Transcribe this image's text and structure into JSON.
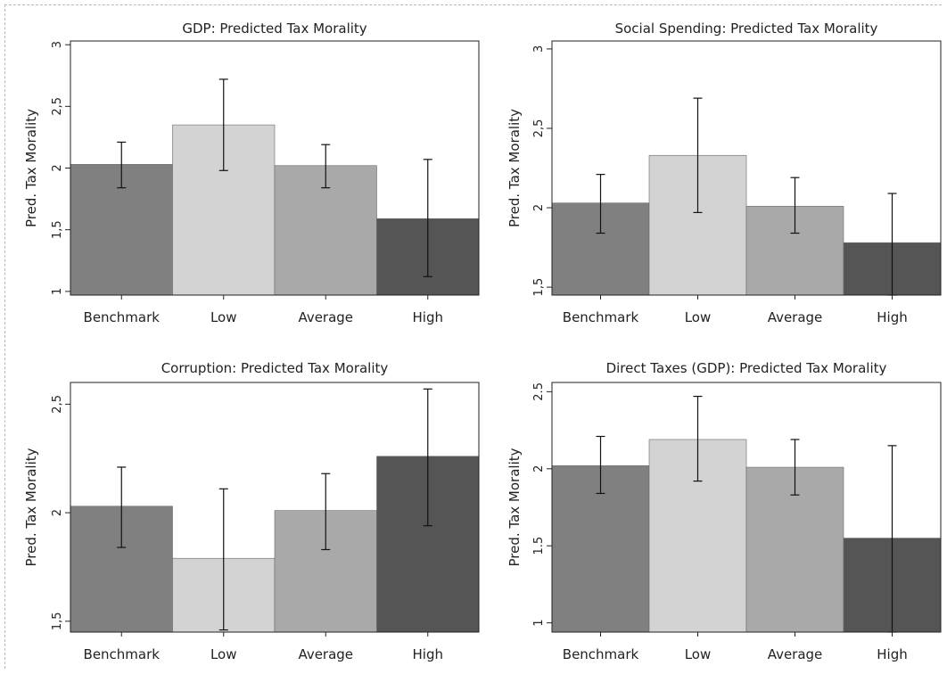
{
  "chart_data": [
    {
      "type": "bar",
      "title": "GDP: Predicted Tax Morality",
      "xlabel": "",
      "ylabel": "Pred. Tax Morality",
      "categories": [
        "Benchmark",
        "Low",
        "Average",
        "High"
      ],
      "values": [
        2.03,
        2.35,
        2.02,
        1.59
      ],
      "error_low": [
        1.84,
        1.98,
        1.84,
        1.12
      ],
      "error_high": [
        2.21,
        2.72,
        2.19,
        2.07
      ],
      "ylim": [
        0.97,
        3.03
      ],
      "yticks": [
        1,
        1.5,
        2,
        2.5,
        3
      ],
      "ytick_labels": [
        "1",
        "1,5",
        "2",
        "2,5",
        "3"
      ],
      "colors": [
        "#808080",
        "#d3d3d3",
        "#a9a9a9",
        "#555555"
      ],
      "grid": false,
      "legend": "none"
    },
    {
      "type": "bar",
      "title": "Social Spending: Predicted Tax Morality",
      "xlabel": "",
      "ylabel": "Pred. Tax Morality",
      "categories": [
        "Benchmark",
        "Low",
        "Average",
        "High"
      ],
      "values": [
        2.03,
        2.33,
        2.01,
        1.78
      ],
      "error_low": [
        1.84,
        1.97,
        1.84,
        1.45
      ],
      "error_high": [
        2.21,
        2.69,
        2.19,
        2.09
      ],
      "ylim": [
        1.45,
        3.05
      ],
      "yticks": [
        1.5,
        2,
        2.5,
        3
      ],
      "ytick_labels": [
        "1,5",
        "2",
        "2,5",
        "3"
      ],
      "colors": [
        "#808080",
        "#d3d3d3",
        "#a9a9a9",
        "#555555"
      ],
      "grid": false,
      "legend": "none"
    },
    {
      "type": "bar",
      "title": "Corruption: Predicted Tax Morality",
      "xlabel": "",
      "ylabel": "Pred. Tax Morality",
      "categories": [
        "Benchmark",
        "Low",
        "Average",
        "High"
      ],
      "values": [
        2.03,
        1.79,
        2.01,
        2.26
      ],
      "error_low": [
        1.84,
        1.46,
        1.83,
        1.94
      ],
      "error_high": [
        2.21,
        2.11,
        2.18,
        2.57
      ],
      "ylim": [
        1.45,
        2.6
      ],
      "yticks": [
        1.5,
        2,
        2.5
      ],
      "ytick_labels": [
        "1,5",
        "2",
        "2,5"
      ],
      "colors": [
        "#808080",
        "#d3d3d3",
        "#a9a9a9",
        "#555555"
      ],
      "grid": false,
      "legend": "none"
    },
    {
      "type": "bar",
      "title": "Direct Taxes (GDP): Predicted Tax Morality",
      "xlabel": "",
      "ylabel": "Pred. Tax Morality",
      "categories": [
        "Benchmark",
        "Low",
        "Average",
        "High"
      ],
      "values": [
        2.02,
        2.19,
        2.01,
        1.55
      ],
      "error_low": [
        1.84,
        1.92,
        1.83,
        0.94
      ],
      "error_high": [
        2.21,
        2.47,
        2.19,
        2.15
      ],
      "ylim": [
        0.94,
        2.56
      ],
      "yticks": [
        1,
        1.5,
        2,
        2.5
      ],
      "ytick_labels": [
        "1",
        "1.5",
        "2",
        "2.5"
      ],
      "colors": [
        "#808080",
        "#d3d3d3",
        "#a9a9a9",
        "#555555"
      ],
      "grid": false,
      "legend": "none"
    }
  ]
}
